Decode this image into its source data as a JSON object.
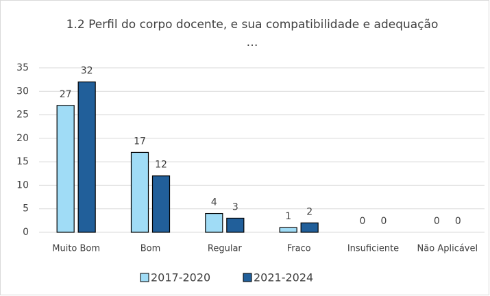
{
  "chart_data": {
    "type": "bar",
    "title": "1.2 Perfil do corpo docente, e sua compatibilidade e adequação",
    "subtitle": "…",
    "categories": [
      "Muito Bom",
      "Bom",
      "Regular",
      "Fraco",
      "Insuficiente",
      "Não Aplicável"
    ],
    "series": [
      {
        "name": "2017-2020",
        "color": "#a0dcf6",
        "values": [
          27,
          17,
          4,
          1,
          0,
          0
        ]
      },
      {
        "name": "2021-2024",
        "color": "#215f9a",
        "values": [
          32,
          12,
          3,
          2,
          0,
          0
        ]
      }
    ],
    "ylim": [
      0,
      35
    ],
    "yticks": [
      0,
      5,
      10,
      15,
      20,
      25,
      30,
      35
    ],
    "grid": true,
    "legend": "bottom"
  }
}
